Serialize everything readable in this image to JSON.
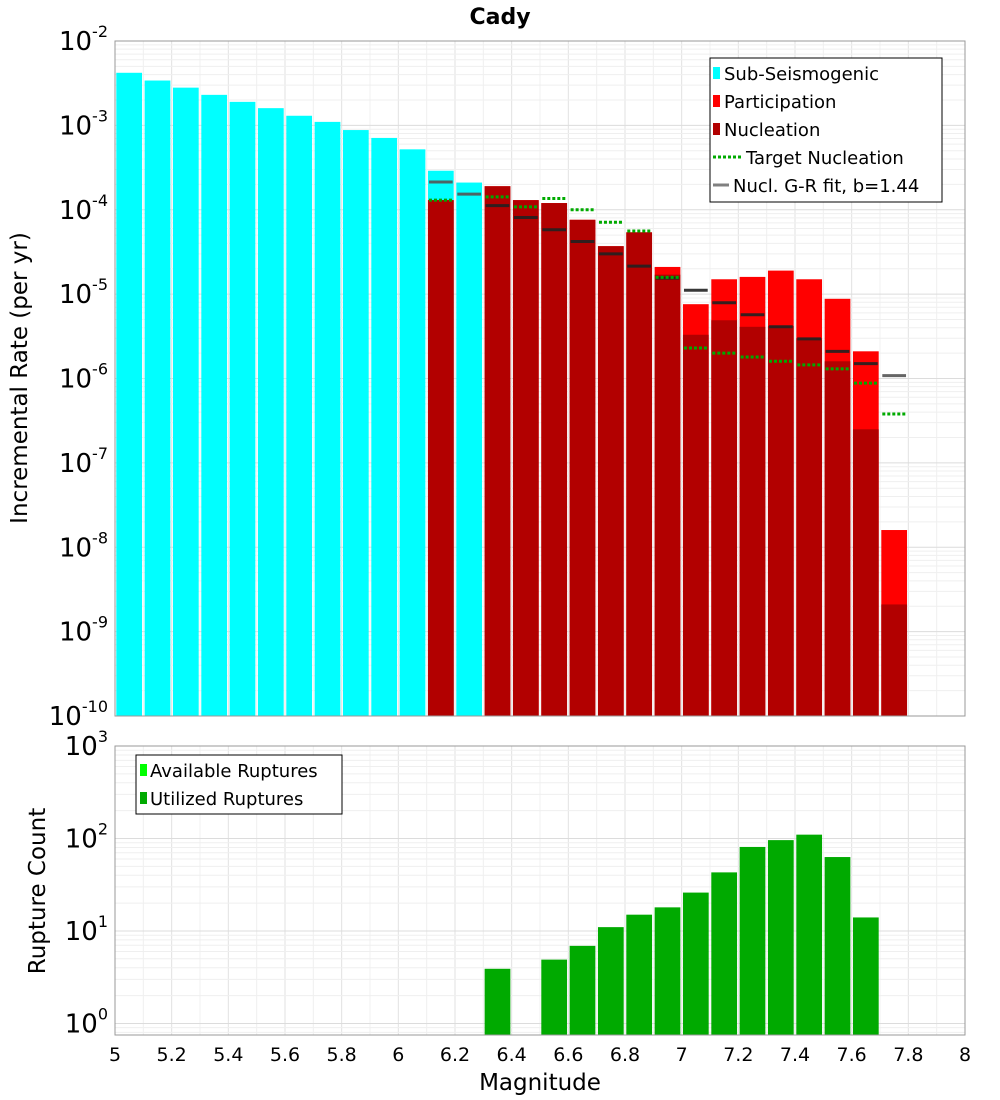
{
  "chart_data": [
    {
      "type": "bar",
      "title": "Cady",
      "xlabel": "",
      "ylabel": "Incremental Rate (per yr)",
      "yscale": "log",
      "xlim": [
        5,
        8
      ],
      "ylim": [
        1e-10,
        0.01
      ],
      "y_ticks": [
        {
          "base": "10",
          "exp": "-10"
        },
        {
          "base": "10",
          "exp": "-9"
        },
        {
          "base": "10",
          "exp": "-8"
        },
        {
          "base": "10",
          "exp": "-7"
        },
        {
          "base": "10",
          "exp": "-6"
        },
        {
          "base": "10",
          "exp": "-5"
        },
        {
          "base": "10",
          "exp": "-4"
        },
        {
          "base": "10",
          "exp": "-3"
        },
        {
          "base": "10",
          "exp": "-2"
        }
      ],
      "legend_position": "top-right",
      "grid": true,
      "colors": {
        "sub_seismogenic": "#00ffff",
        "participation": "#ff0000",
        "nucleation": "#b20000",
        "target_nucleation": "#00aa00",
        "gr_fit": "#808080"
      },
      "series": [
        {
          "name": "Sub-Seismogenic",
          "mark": "bar",
          "x": [
            5.05,
            5.15,
            5.25,
            5.35,
            5.45,
            5.55,
            5.65,
            5.75,
            5.85,
            5.95,
            6.05,
            6.15,
            6.25
          ],
          "values": [
            0.0042,
            0.0034,
            0.0028,
            0.0023,
            0.0019,
            0.0016,
            0.0013,
            0.0011,
            0.00088,
            0.00071,
            0.00052,
            0.00029,
            0.00021
          ]
        },
        {
          "name": "Participation",
          "mark": "bar",
          "x": [
            6.15,
            6.35,
            6.45,
            6.55,
            6.65,
            6.75,
            6.85,
            6.95,
            7.05,
            7.15,
            7.25,
            7.35,
            7.45,
            7.55,
            7.65,
            7.75
          ],
          "values": [
            0.00013,
            0.00019,
            0.00013,
            0.00012,
            7.6e-05,
            3.7e-05,
            5.4e-05,
            2.1e-05,
            7.6e-06,
            1.5e-05,
            1.6e-05,
            1.9e-05,
            1.5e-05,
            8.8e-06,
            2.1e-06,
            1.6e-08
          ]
        },
        {
          "name": "Nucleation",
          "mark": "bar",
          "x": [
            6.15,
            6.35,
            6.45,
            6.55,
            6.65,
            6.75,
            6.85,
            6.95,
            7.05,
            7.15,
            7.25,
            7.35,
            7.45,
            7.55,
            7.65,
            7.75
          ],
          "values": [
            0.00013,
            0.00019,
            0.00013,
            0.00012,
            7.6e-05,
            3.7e-05,
            5.4e-05,
            1.7e-05,
            3.3e-06,
            4.9e-06,
            4.1e-06,
            4.2e-06,
            3e-06,
            1.6e-06,
            2.5e-07,
            2.1e-09
          ]
        },
        {
          "name": "Target Nucleation",
          "mark": "dotted-segment",
          "x": [
            6.15,
            6.35,
            6.45,
            6.55,
            6.65,
            6.75,
            6.85,
            6.95,
            7.05,
            7.15,
            7.25,
            7.35,
            7.45,
            7.55,
            7.65,
            7.75
          ],
          "values": [
            0.00013,
            0.000142,
            0.000108,
            0.000136,
            0.0001,
            7.1e-05,
            5.6e-05,
            1.58e-05,
            2.3e-06,
            2e-06,
            1.8e-06,
            1.6e-06,
            1.45e-06,
            1.3e-06,
            8.8e-07,
            3.8e-07
          ]
        },
        {
          "name": "Nucl. G-R fit, b=1.44",
          "mark": "segment",
          "x": [
            6.15,
            6.25,
            6.35,
            6.45,
            6.55,
            6.65,
            6.75,
            6.85,
            6.95,
            7.05,
            7.15,
            7.25,
            7.35,
            7.45,
            7.55,
            7.65,
            7.75
          ],
          "values": [
            0.000213,
            0.000153,
            0.000112,
            8.1e-05,
            5.8e-05,
            4.2e-05,
            3e-05,
            2.15e-05,
            1.55e-05,
            1.11e-05,
            7.9e-06,
            5.7e-06,
            4.1e-06,
            2.95e-06,
            2.1e-06,
            1.5e-06,
            1.08e-06
          ]
        }
      ]
    },
    {
      "type": "bar",
      "title": "",
      "xlabel": "Magnitude",
      "ylabel": "Rupture Count",
      "yscale": "log",
      "xlim": [
        5,
        8
      ],
      "ylim": [
        0.75,
        1000
      ],
      "x_ticks": [
        "5",
        "5.2",
        "5.4",
        "5.6",
        "5.8",
        "6",
        "6.2",
        "6.4",
        "6.6",
        "6.8",
        "7",
        "7.2",
        "7.4",
        "7.6",
        "7.8",
        "8"
      ],
      "y_ticks": [
        {
          "base": "10",
          "exp": "0"
        },
        {
          "base": "10",
          "exp": "1"
        },
        {
          "base": "10",
          "exp": "2"
        },
        {
          "base": "10",
          "exp": "3"
        }
      ],
      "legend_position": "top-left",
      "grid": true,
      "colors": {
        "available": "#00ff00",
        "utilized": "#00aa00"
      },
      "series": [
        {
          "name": "Available Ruptures",
          "mark": "bar",
          "x": [
            6.35,
            6.55,
            6.65,
            6.75,
            6.85,
            6.95,
            7.05,
            7.15,
            7.25,
            7.35,
            7.45,
            7.55,
            7.65
          ],
          "values": [
            3.9,
            4.9,
            6.9,
            11,
            15,
            18,
            26,
            43,
            81,
            96,
            110,
            63,
            14
          ]
        },
        {
          "name": "Utilized Ruptures",
          "mark": "bar",
          "x": [
            6.35,
            6.55,
            6.65,
            6.75,
            6.85,
            6.95,
            7.05,
            7.15,
            7.25,
            7.35,
            7.45,
            7.55,
            7.65
          ],
          "values": [
            3.9,
            4.9,
            6.9,
            11,
            15,
            18,
            26,
            43,
            81,
            96,
            110,
            63,
            14
          ]
        }
      ]
    }
  ]
}
